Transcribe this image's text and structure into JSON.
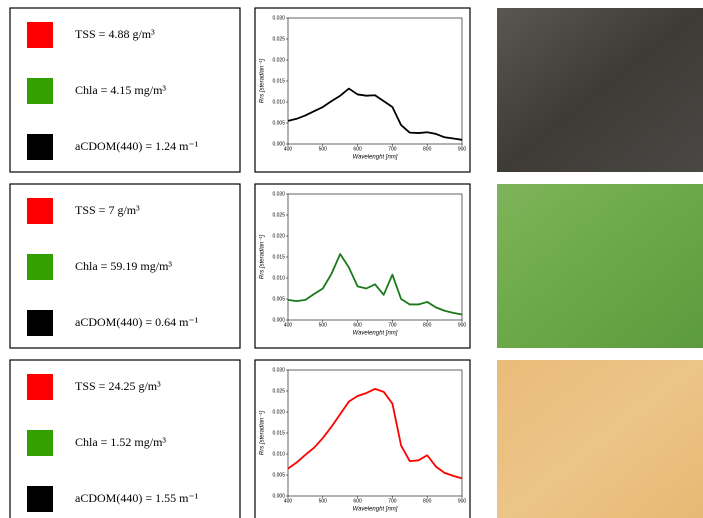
{
  "chart_data": [
    {
      "type": "line",
      "x_label": "Wavelenght [nm]",
      "y_label": "Rrs [steradian⁻¹]",
      "annotations": [
        {
          "text": "TSS = 4.88 g/m³",
          "color": "#ff0000"
        },
        {
          "text": "Chla = 4.15 mg/m³",
          "color": "#33a000"
        },
        {
          "text": "aCDOM(440) = 1.24 m⁻¹",
          "color": "#000000"
        }
      ],
      "x": [
        400,
        425,
        450,
        475,
        500,
        525,
        550,
        575,
        600,
        625,
        650,
        675,
        700,
        725,
        750,
        775,
        800,
        825,
        850,
        875,
        900
      ],
      "values": [
        0.0055,
        0.006,
        0.0068,
        0.0078,
        0.0088,
        0.0102,
        0.0115,
        0.0132,
        0.0118,
        0.0115,
        0.0116,
        0.0102,
        0.0088,
        0.0045,
        0.0027,
        0.0026,
        0.0028,
        0.0024,
        0.0016,
        0.0013,
        0.001
      ],
      "color": "#000000",
      "xlim": [
        400,
        900
      ],
      "xticks": [
        400,
        500,
        600,
        700,
        800,
        900
      ],
      "ylim": [
        0,
        0.03
      ],
      "yticks": [
        {
          "value": 0,
          "label": "0.000"
        },
        {
          "value": 0.005,
          "label": "0.005"
        },
        {
          "value": 0.01,
          "label": "0.010"
        },
        {
          "value": 0.015,
          "label": "0.015"
        },
        {
          "value": 0.02,
          "label": "0.020"
        },
        {
          "value": 0.025,
          "label": "0.025"
        },
        {
          "value": 0.03,
          "label": "0.030"
        }
      ]
    },
    {
      "type": "line",
      "x_label": "Wavelenght [nm]",
      "y_label": "Rrs [steradian⁻¹]",
      "annotations": [
        {
          "text": "TSS = 7 g/m³",
          "color": "#ff0000"
        },
        {
          "text": "Chla = 59.19 mg/m³",
          "color": "#33a000"
        },
        {
          "text": "aCDOM(440) = 0.64 m⁻¹",
          "color": "#000000"
        }
      ],
      "x": [
        400,
        425,
        450,
        475,
        500,
        525,
        550,
        575,
        600,
        625,
        650,
        675,
        700,
        725,
        750,
        775,
        800,
        825,
        850,
        875,
        900
      ],
      "values": [
        0.0048,
        0.0045,
        0.0048,
        0.0062,
        0.0075,
        0.011,
        0.0157,
        0.0125,
        0.008,
        0.0075,
        0.0085,
        0.006,
        0.0108,
        0.005,
        0.0037,
        0.0037,
        0.0043,
        0.003,
        0.0022,
        0.0017,
        0.0013
      ],
      "color": "#1a7a1a",
      "xlim": [
        400,
        900
      ],
      "xticks": [
        400,
        500,
        600,
        700,
        800,
        900
      ],
      "ylim": [
        0,
        0.03
      ],
      "yticks": [
        {
          "value": 0,
          "label": "0.000"
        },
        {
          "value": 0.005,
          "label": "0.005"
        },
        {
          "value": 0.01,
          "label": "0.010"
        },
        {
          "value": 0.015,
          "label": "0.015"
        },
        {
          "value": 0.02,
          "label": "0.020"
        },
        {
          "value": 0.025,
          "label": "0.025"
        },
        {
          "value": 0.03,
          "label": "0.030"
        }
      ]
    },
    {
      "type": "line",
      "x_label": "Wavelenght [nm]",
      "y_label": "Rrs [steradian⁻¹]",
      "annotations": [
        {
          "text": "TSS = 24.25 g/m³",
          "color": "#ff0000"
        },
        {
          "text": "Chla = 1.52 mg/m³",
          "color": "#33a000"
        },
        {
          "text": "aCDOM(440) = 1.55 m⁻¹",
          "color": "#000000"
        }
      ],
      "x": [
        400,
        425,
        450,
        475,
        500,
        525,
        550,
        575,
        600,
        625,
        650,
        675,
        700,
        725,
        750,
        775,
        800,
        825,
        850,
        875,
        900
      ],
      "values": [
        0.0065,
        0.008,
        0.0098,
        0.0115,
        0.0138,
        0.0165,
        0.0195,
        0.0225,
        0.0238,
        0.0245,
        0.0255,
        0.0248,
        0.022,
        0.012,
        0.0083,
        0.0085,
        0.0097,
        0.007,
        0.0055,
        0.0048,
        0.0042
      ],
      "color": "#ff0000",
      "xlim": [
        400,
        900
      ],
      "xticks": [
        400,
        500,
        600,
        700,
        800,
        900
      ],
      "ylim": [
        0,
        0.03
      ],
      "yticks": [
        {
          "value": 0,
          "label": "0.000"
        },
        {
          "value": 0.005,
          "label": "0.005"
        },
        {
          "value": 0.01,
          "label": "0.010"
        },
        {
          "value": 0.015,
          "label": "0.015"
        },
        {
          "value": 0.02,
          "label": "0.020"
        },
        {
          "value": 0.025,
          "label": "0.025"
        },
        {
          "value": 0.03,
          "label": "0.030"
        }
      ]
    }
  ]
}
